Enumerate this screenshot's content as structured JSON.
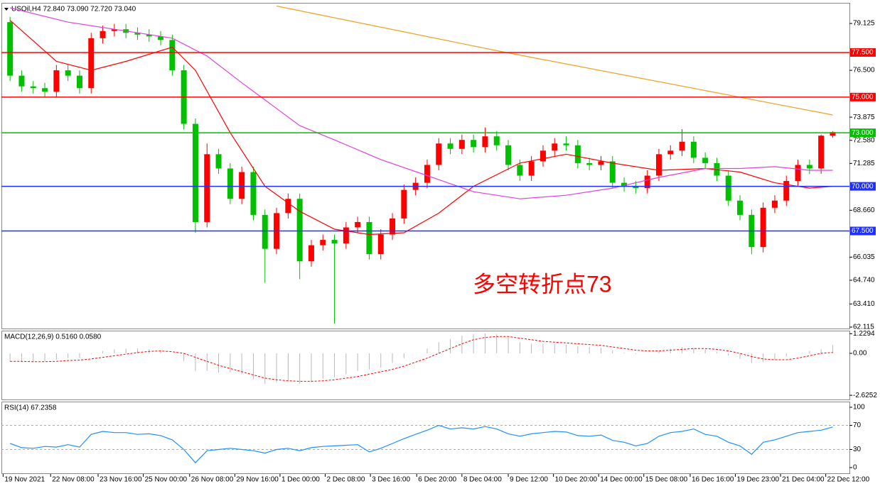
{
  "chart_data": [
    {
      "type": "candlestick",
      "title": "USOil,H4 72.840 73.090 72.720 73.040",
      "annotation": "多空转折点73",
      "up_color": "#ff0000",
      "down_color": "#00c000",
      "open": [
        79.2,
        76.2,
        75.6,
        75.5,
        75.3,
        76.5,
        76.2,
        75.5,
        78.3,
        78.7,
        78.8,
        78.6,
        78.5,
        78.4,
        78.2,
        76.5,
        73.5,
        68.0,
        71.8,
        71.0,
        69.3,
        70.8,
        68.4,
        66.5,
        68.5,
        69.3,
        65.8,
        66.7,
        67.0,
        66.8,
        67.7,
        68.0,
        66.2,
        67.3,
        68.2,
        69.8,
        70.2,
        71.2,
        72.4,
        72.1,
        72.6,
        72.2,
        72.8,
        72.3,
        71.2,
        70.6,
        71.4,
        72.0,
        72.4,
        72.3,
        71.3,
        71.2,
        71.4,
        70.2,
        70.0,
        69.9,
        70.6,
        71.8,
        72.0,
        72.5,
        71.6,
        71.3,
        70.6,
        69.2,
        68.4,
        66.6,
        68.8,
        69.2,
        70.3,
        71.2,
        71.0,
        72.84
      ],
      "high": [
        79.5,
        76.5,
        75.9,
        75.8,
        76.8,
        76.8,
        76.5,
        78.6,
        79.0,
        79.1,
        79.1,
        78.9,
        78.8,
        78.7,
        78.5,
        76.8,
        73.8,
        72.4,
        72.1,
        71.3,
        71.1,
        71.1,
        68.7,
        68.8,
        69.6,
        69.6,
        67.0,
        67.3,
        67.3,
        68.0,
        68.3,
        68.3,
        67.6,
        68.5,
        70.1,
        70.5,
        71.5,
        72.7,
        72.7,
        72.9,
        72.9,
        73.3,
        73.1,
        72.6,
        71.5,
        71.7,
        72.3,
        72.7,
        72.8,
        72.6,
        71.6,
        71.7,
        71.7,
        70.5,
        70.3,
        70.9,
        72.1,
        72.3,
        73.2,
        72.8,
        71.9,
        71.6,
        70.9,
        69.5,
        68.7,
        69.1,
        69.5,
        70.6,
        71.5,
        71.5,
        72.9,
        73.09
      ],
      "low": [
        75.9,
        75.3,
        75.2,
        75.0,
        75.0,
        75.9,
        75.2,
        75.2,
        78.0,
        78.4,
        78.3,
        78.2,
        78.1,
        77.9,
        76.2,
        73.2,
        67.4,
        67.7,
        70.7,
        69.0,
        69.0,
        68.1,
        64.6,
        66.2,
        68.2,
        64.8,
        65.5,
        66.4,
        62.3,
        66.5,
        67.4,
        65.9,
        65.9,
        67.0,
        67.9,
        69.5,
        69.9,
        70.9,
        71.8,
        71.8,
        71.9,
        71.9,
        72.0,
        70.9,
        70.3,
        70.3,
        71.1,
        71.7,
        72.0,
        71.0,
        70.9,
        70.9,
        69.9,
        69.7,
        69.6,
        69.6,
        70.3,
        71.5,
        71.7,
        71.3,
        71.0,
        70.3,
        68.9,
        68.1,
        66.2,
        66.3,
        68.5,
        68.9,
        70.0,
        70.7,
        70.7,
        72.72
      ],
      "close": [
        76.2,
        75.6,
        75.5,
        75.3,
        76.5,
        76.2,
        75.5,
        78.3,
        78.7,
        78.8,
        78.6,
        78.5,
        78.4,
        78.2,
        76.5,
        73.5,
        68.0,
        71.8,
        71.0,
        69.3,
        70.8,
        68.4,
        66.5,
        68.5,
        69.3,
        65.8,
        66.7,
        67.0,
        66.8,
        67.7,
        68.0,
        66.2,
        67.3,
        68.2,
        69.8,
        70.2,
        71.2,
        72.4,
        72.1,
        72.6,
        72.2,
        72.8,
        72.3,
        71.2,
        70.6,
        71.4,
        72.0,
        72.4,
        72.3,
        71.3,
        71.2,
        71.4,
        70.2,
        70.0,
        69.9,
        70.6,
        71.8,
        72.0,
        72.5,
        71.6,
        71.3,
        70.6,
        69.2,
        68.4,
        66.6,
        68.8,
        69.2,
        70.3,
        71.2,
        71.0,
        72.84,
        73.04
      ],
      "ma": [
        {
          "color": "#ff0000",
          "x": [
            0,
            4,
            7,
            10,
            14,
            16,
            19,
            22,
            25,
            28,
            31,
            34,
            37,
            40,
            44,
            48,
            52,
            56,
            60,
            63,
            66,
            69,
            71
          ],
          "values": [
            79.3,
            77.0,
            76.5,
            77.0,
            77.8,
            76.5,
            73.0,
            70.0,
            68.6,
            67.6,
            67.3,
            67.4,
            68.5,
            70.0,
            71.3,
            71.8,
            71.3,
            70.9,
            71.0,
            70.8,
            70.2,
            69.9,
            70.0
          ]
        },
        {
          "color": "#e040e0",
          "x": [
            0,
            5,
            10,
            14,
            17,
            20,
            25,
            28,
            32,
            36,
            40,
            44,
            48,
            52,
            56,
            60,
            63,
            66,
            69,
            71
          ],
          "values": [
            80.0,
            79.2,
            78.7,
            78.3,
            77.3,
            75.8,
            73.4,
            72.6,
            71.5,
            70.6,
            69.7,
            69.3,
            69.5,
            69.9,
            70.5,
            71.0,
            71.0,
            71.1,
            70.9,
            70.9
          ]
        },
        {
          "color": "#f0a020",
          "x": [
            23,
            42,
            71
          ],
          "values": [
            80.1,
            77.6,
            74.0
          ]
        }
      ],
      "levels": [
        {
          "value": 77.5,
          "label": "77.500",
          "color": "#ff0000"
        },
        {
          "value": 75.0,
          "label": "75.000",
          "color": "#ff0000"
        },
        {
          "value": 73.0,
          "label": "73.000",
          "color": "#00c000"
        },
        {
          "value": 70.0,
          "label": "70.000",
          "color": "#2030ff"
        },
        {
          "value": 67.5,
          "label": "67.500",
          "color": "#2030ff"
        }
      ],
      "ylim": [
        62.035,
        80.28
      ],
      "yticks": [
        79.125,
        {
          "value": 76.5,
          "label": "76.500"
        },
        73.875,
        {
          "value": 72.58,
          "label": "72.580"
        },
        71.285,
        {
          "value": 68.66,
          "label": "68.660"
        },
        66.035,
        {
          "value": 64.74,
          "label": "64.740"
        },
        {
          "value": 63.41,
          "label": "63.410"
        },
        62.115
      ],
      "xticks": [
        {
          "value": -0.6,
          "label": "19 Nov 2021"
        },
        {
          "value": 3.5,
          "label": "22 Nov 08:00"
        },
        {
          "value": 7.6,
          "label": "23 Nov 16:00"
        },
        {
          "value": 11.5,
          "label": "25 Nov 00:00"
        },
        {
          "value": 15.5,
          "label": "26 Nov 08:00"
        },
        {
          "value": 19.4,
          "label": "29 Nov 16:00"
        },
        {
          "value": 23.3,
          "label": "1 Dec 00:00"
        },
        {
          "value": 27.2,
          "label": "2 Dec 08:00"
        },
        {
          "value": 31.1,
          "label": "3 Dec 16:00"
        },
        {
          "value": 35.1,
          "label": "6 Dec 20:00"
        },
        {
          "value": 39.0,
          "label": "8 Dec 04:00"
        },
        {
          "value": 43.0,
          "label": "9 Dec 12:00"
        },
        {
          "value": 46.9,
          "label": "10 Dec 20:00"
        },
        {
          "value": 50.8,
          "label": "14 Dec 00:00"
        },
        {
          "value": 54.7,
          "label": "15 Dec 08:00"
        },
        {
          "value": 58.7,
          "label": "16 Dec 16:00"
        },
        {
          "value": 62.6,
          "label": "19 Dec 23:00"
        },
        {
          "value": 66.5,
          "label": "21 Dec 04:00"
        },
        {
          "value": 70.4,
          "label": "22 Dec 12:00"
        }
      ]
    },
    {
      "type": "macd",
      "title": "MACD(12,26,9) 0.5160 0.0580",
      "hist_color": "#b8b8b8",
      "signal_color": "#ff0000",
      "histogram": [
        -0.5,
        -0.55,
        -0.55,
        -0.5,
        -0.4,
        -0.3,
        -0.3,
        -0.05,
        0.15,
        0.25,
        0.3,
        0.3,
        0.25,
        0.2,
        0.0,
        -0.5,
        -1.1,
        -1.1,
        -1.2,
        -1.2,
        -1.3,
        -1.6,
        -1.9,
        -1.8,
        -1.7,
        -1.9,
        -1.8,
        -1.6,
        -1.5,
        -1.3,
        -1.1,
        -1.0,
        -0.9,
        -0.6,
        -0.3,
        0.0,
        0.3,
        0.7,
        0.9,
        1.1,
        1.2,
        1.25,
        1.2,
        1.0,
        0.7,
        0.6,
        0.6,
        0.6,
        0.55,
        0.45,
        0.4,
        0.35,
        0.2,
        0.05,
        -0.05,
        0.0,
        0.15,
        0.3,
        0.4,
        0.35,
        0.25,
        0.1,
        -0.15,
        -0.35,
        -0.6,
        -0.55,
        -0.4,
        -0.2,
        0.0,
        0.15,
        0.25,
        0.516
      ],
      "signal": [
        -0.5,
        -0.5,
        -0.52,
        -0.52,
        -0.5,
        -0.45,
        -0.42,
        -0.35,
        -0.25,
        -0.15,
        -0.05,
        0.05,
        0.12,
        0.15,
        0.1,
        0.0,
        -0.25,
        -0.5,
        -0.75,
        -0.95,
        -1.15,
        -1.35,
        -1.55,
        -1.65,
        -1.72,
        -1.75,
        -1.75,
        -1.72,
        -1.65,
        -1.55,
        -1.45,
        -1.3,
        -1.15,
        -1.0,
        -0.8,
        -0.55,
        -0.3,
        0.0,
        0.3,
        0.6,
        0.85,
        1.0,
        1.05,
        1.05,
        0.95,
        0.85,
        0.75,
        0.7,
        0.65,
        0.6,
        0.55,
        0.5,
        0.4,
        0.3,
        0.2,
        0.15,
        0.15,
        0.2,
        0.25,
        0.3,
        0.3,
        0.25,
        0.15,
        0.0,
        -0.2,
        -0.35,
        -0.4,
        -0.4,
        -0.3,
        -0.15,
        0.0,
        0.058
      ],
      "ylim": [
        -2.93,
        1.42
      ],
      "yticks": [
        1.2294,
        {
          "value": 0,
          "label": "0.00"
        },
        -2.6252
      ]
    },
    {
      "type": "line",
      "title": "RSI(14) 67.2358",
      "color": "#1e90ff",
      "values": [
        40,
        33,
        32,
        35,
        34,
        38,
        34,
        55,
        60,
        58,
        58,
        55,
        56,
        53,
        46,
        30,
        8,
        28,
        30,
        32,
        30,
        28,
        24,
        30,
        32,
        28,
        33,
        35,
        36,
        37,
        38,
        26,
        32,
        40,
        48,
        55,
        62,
        70,
        64,
        66,
        64,
        68,
        64,
        56,
        52,
        56,
        58,
        60,
        59,
        53,
        52,
        54,
        45,
        42,
        36,
        40,
        52,
        58,
        60,
        64,
        55,
        52,
        42,
        36,
        22,
        42,
        46,
        52,
        58,
        60,
        62,
        67.2358
      ],
      "levels": [
        70,
        30
      ],
      "ylim": [
        -10.6,
        108.2
      ],
      "yticks": [
        100,
        70,
        30,
        0
      ]
    }
  ]
}
